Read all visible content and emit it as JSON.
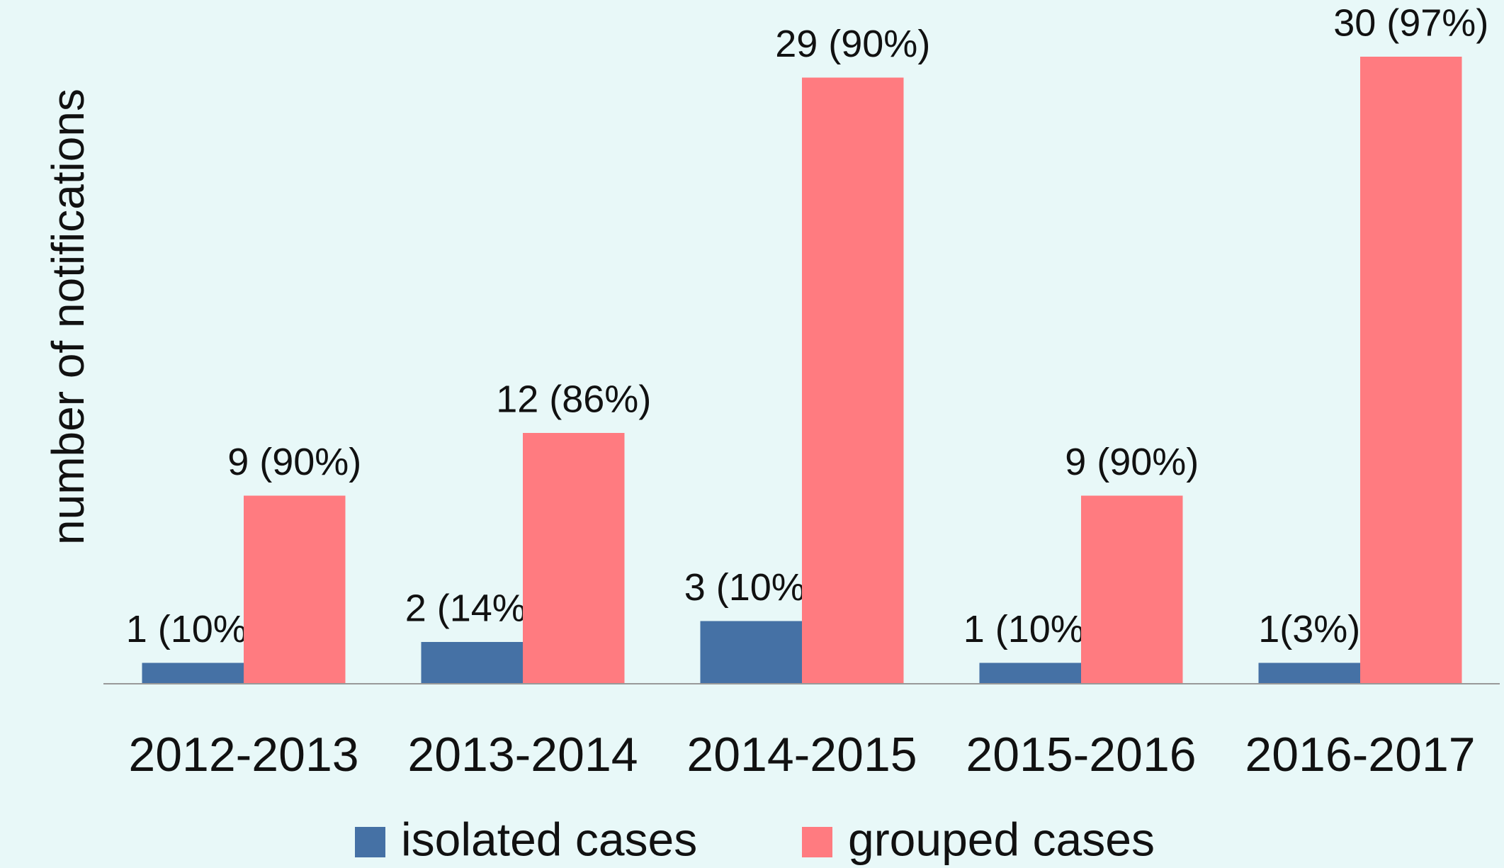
{
  "chart_data": {
    "type": "bar",
    "y_label": "number of notifications",
    "categories": [
      "2012-2013",
      "2013-2014",
      "2014-2015",
      "2015-2016",
      "2016-2017"
    ],
    "series": [
      {
        "name": "isolated cases",
        "color": "#4571a5",
        "values": [
          1,
          2,
          3,
          1,
          1
        ],
        "value_labels": [
          "1 (10%)",
          "2 (14%)",
          "3 (10%)",
          "1 (10%)",
          "1(3%)"
        ]
      },
      {
        "name": "grouped cases",
        "color": "#ff7b80",
        "values": [
          9,
          12,
          29,
          9,
          30
        ],
        "value_labels": [
          "9 (90%)",
          "12 (86%)",
          "29 (90%)",
          "9 (90%)",
          "30 (97%)"
        ]
      }
    ],
    "ylim": [
      0,
      30
    ],
    "legend": "bottom"
  }
}
